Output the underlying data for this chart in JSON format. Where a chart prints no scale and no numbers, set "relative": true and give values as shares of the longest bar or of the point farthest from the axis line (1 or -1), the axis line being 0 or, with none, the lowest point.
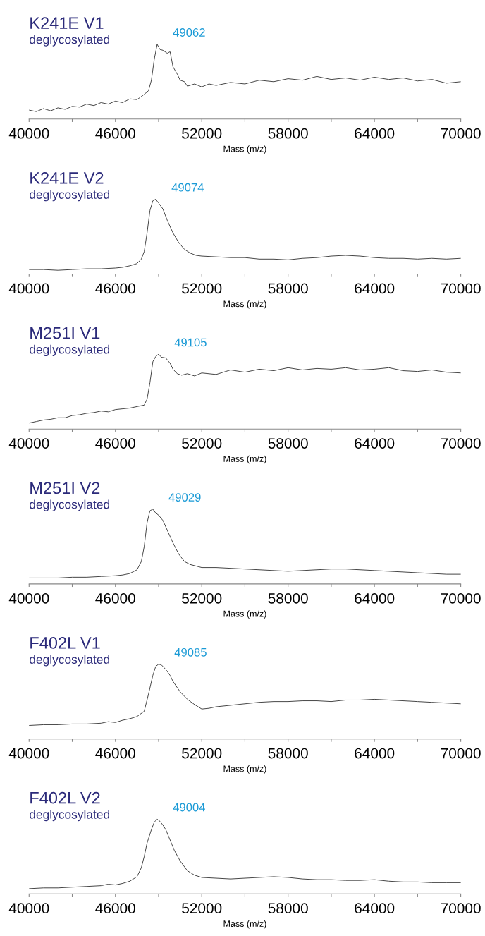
{
  "chart_data": [
    {
      "type": "line",
      "title": "K241E V1",
      "subtitle": "deglycosylated",
      "xlabel": "Mass (m/z)",
      "relative": true,
      "xlim": [
        40000,
        70000
      ],
      "xticks": [
        40000,
        {
          "value": 43000,
          "label": null
        },
        46000,
        {
          "value": 49000,
          "label": null
        },
        52000,
        {
          "value": 55000,
          "label": null
        },
        58000,
        {
          "value": 61000,
          "label": null
        },
        64000,
        {
          "value": 67000,
          "label": null
        },
        70000
      ],
      "tick_labels": "x",
      "grid": false,
      "annotations": [
        "49062"
      ],
      "series": [
        {
          "color": "#404040",
          "x": [
            40000,
            40500,
            41000,
            41500,
            42000,
            42500,
            43000,
            43500,
            44000,
            44500,
            45000,
            45500,
            46000,
            46500,
            47000,
            47500,
            48000,
            48300,
            48500,
            48700,
            48900,
            49100,
            49300,
            49600,
            49800,
            50000,
            50300,
            50500,
            50800,
            51000,
            51500,
            52000,
            52500,
            53000,
            54000,
            55000,
            56000,
            57000,
            58000,
            59000,
            60000,
            61000,
            62000,
            63000,
            64000,
            65000,
            66000,
            67000,
            68000,
            69000,
            70000
          ],
          "values": [
            0.12,
            0.1,
            0.14,
            0.11,
            0.15,
            0.13,
            0.17,
            0.16,
            0.2,
            0.18,
            0.22,
            0.2,
            0.24,
            0.22,
            0.27,
            0.26,
            0.33,
            0.38,
            0.52,
            0.8,
            1,
            0.93,
            0.92,
            0.88,
            0.9,
            0.7,
            0.6,
            0.52,
            0.5,
            0.44,
            0.47,
            0.43,
            0.47,
            0.45,
            0.49,
            0.47,
            0.52,
            0.5,
            0.54,
            0.52,
            0.57,
            0.53,
            0.55,
            0.52,
            0.56,
            0.53,
            0.55,
            0.51,
            0.53,
            0.48,
            0.5
          ]
        }
      ]
    },
    {
      "type": "line",
      "title": "K241E V2",
      "subtitle": "deglycosylated",
      "xlabel": "Mass (m/z)",
      "relative": true,
      "xlim": [
        40000,
        70000
      ],
      "xticks": [
        40000,
        {
          "value": 43000,
          "label": null
        },
        46000,
        {
          "value": 49000,
          "label": null
        },
        52000,
        {
          "value": 55000,
          "label": null
        },
        58000,
        {
          "value": 61000,
          "label": null
        },
        64000,
        {
          "value": 67000,
          "label": null
        },
        70000
      ],
      "tick_labels": "x",
      "grid": false,
      "annotations": [
        "49074"
      ],
      "series": [
        {
          "color": "#404040",
          "x": [
            40000,
            41000,
            42000,
            43000,
            44000,
            45000,
            46000,
            46500,
            47000,
            47500,
            47800,
            48000,
            48200,
            48400,
            48600,
            48800,
            49000,
            49300,
            49600,
            50000,
            50400,
            50800,
            51200,
            51600,
            52000,
            53000,
            54000,
            55000,
            56000,
            57000,
            58000,
            59000,
            60000,
            61000,
            62000,
            63000,
            64000,
            65000,
            66000,
            67000,
            68000,
            69000,
            70000
          ],
          "values": [
            0.06,
            0.06,
            0.05,
            0.06,
            0.07,
            0.07,
            0.08,
            0.09,
            0.11,
            0.14,
            0.2,
            0.3,
            0.55,
            0.85,
            0.98,
            1,
            0.95,
            0.87,
            0.72,
            0.55,
            0.42,
            0.33,
            0.28,
            0.25,
            0.24,
            0.23,
            0.22,
            0.22,
            0.2,
            0.2,
            0.19,
            0.21,
            0.22,
            0.24,
            0.25,
            0.24,
            0.22,
            0.21,
            0.21,
            0.2,
            0.21,
            0.2,
            0.21
          ]
        }
      ]
    },
    {
      "type": "line",
      "title": "M251I V1",
      "subtitle": "deglycosylated",
      "xlabel": "Mass (m/z)",
      "relative": true,
      "xlim": [
        40000,
        70000
      ],
      "xticks": [
        40000,
        {
          "value": 43000,
          "label": null
        },
        46000,
        {
          "value": 49000,
          "label": null
        },
        52000,
        {
          "value": 55000,
          "label": null
        },
        58000,
        {
          "value": 61000,
          "label": null
        },
        64000,
        {
          "value": 67000,
          "label": null
        },
        70000
      ],
      "tick_labels": "x",
      "grid": false,
      "annotations": [
        "49105"
      ],
      "series": [
        {
          "color": "#404040",
          "x": [
            40000,
            40500,
            41000,
            41500,
            42000,
            42500,
            43000,
            43500,
            44000,
            44500,
            45000,
            45500,
            46000,
            46500,
            47000,
            47500,
            48000,
            48200,
            48400,
            48600,
            48800,
            49000,
            49200,
            49500,
            49800,
            50000,
            50300,
            50600,
            51000,
            51500,
            52000,
            53000,
            54000,
            55000,
            56000,
            57000,
            58000,
            59000,
            60000,
            61000,
            62000,
            63000,
            64000,
            65000,
            66000,
            67000,
            68000,
            69000,
            70000
          ],
          "values": [
            0.08,
            0.1,
            0.12,
            0.13,
            0.15,
            0.15,
            0.18,
            0.19,
            0.21,
            0.22,
            0.24,
            0.23,
            0.26,
            0.27,
            0.28,
            0.3,
            0.32,
            0.4,
            0.62,
            0.9,
            0.97,
            1,
            0.96,
            0.95,
            0.88,
            0.8,
            0.74,
            0.72,
            0.74,
            0.71,
            0.75,
            0.73,
            0.79,
            0.76,
            0.8,
            0.78,
            0.82,
            0.79,
            0.81,
            0.8,
            0.82,
            0.79,
            0.8,
            0.82,
            0.78,
            0.77,
            0.79,
            0.76,
            0.75
          ]
        }
      ]
    },
    {
      "type": "line",
      "title": "M251I V2",
      "subtitle": "deglycosylated",
      "xlabel": "Mass (m/z)",
      "relative": true,
      "xlim": [
        40000,
        70000
      ],
      "xticks": [
        40000,
        {
          "value": 43000,
          "label": null
        },
        46000,
        {
          "value": 49000,
          "label": null
        },
        52000,
        {
          "value": 55000,
          "label": null
        },
        58000,
        {
          "value": 61000,
          "label": null
        },
        64000,
        {
          "value": 67000,
          "label": null
        },
        70000
      ],
      "tick_labels": "x",
      "grid": false,
      "annotations": [
        "49029"
      ],
      "series": [
        {
          "color": "#404040",
          "x": [
            40000,
            41000,
            42000,
            43000,
            44000,
            45000,
            46000,
            46500,
            47000,
            47500,
            47800,
            48000,
            48200,
            48400,
            48600,
            48800,
            49000,
            49300,
            49600,
            50000,
            50400,
            50800,
            51200,
            51600,
            52000,
            53000,
            54000,
            55000,
            56000,
            57000,
            58000,
            59000,
            60000,
            61000,
            62000,
            63000,
            64000,
            65000,
            66000,
            67000,
            68000,
            69000,
            70000
          ],
          "values": [
            0.08,
            0.08,
            0.08,
            0.09,
            0.09,
            0.1,
            0.11,
            0.12,
            0.14,
            0.19,
            0.3,
            0.5,
            0.82,
            0.98,
            1,
            0.95,
            0.92,
            0.85,
            0.72,
            0.55,
            0.4,
            0.3,
            0.26,
            0.24,
            0.22,
            0.22,
            0.21,
            0.2,
            0.19,
            0.18,
            0.17,
            0.18,
            0.19,
            0.2,
            0.2,
            0.19,
            0.18,
            0.17,
            0.16,
            0.15,
            0.14,
            0.13,
            0.13
          ]
        }
      ]
    },
    {
      "type": "line",
      "title": "F402L V1",
      "subtitle": "deglycosylated",
      "xlabel": "Mass (m/z)",
      "relative": true,
      "xlim": [
        40000,
        70000
      ],
      "xticks": [
        40000,
        {
          "value": 43000,
          "label": null
        },
        46000,
        {
          "value": 49000,
          "label": null
        },
        52000,
        {
          "value": 55000,
          "label": null
        },
        58000,
        {
          "value": 61000,
          "label": null
        },
        64000,
        {
          "value": 67000,
          "label": null
        },
        70000
      ],
      "tick_labels": "x",
      "grid": false,
      "annotations": [
        "49085"
      ],
      "series": [
        {
          "color": "#404040",
          "x": [
            40000,
            41000,
            42000,
            43000,
            44000,
            45000,
            45500,
            46000,
            46500,
            47000,
            47500,
            48000,
            48300,
            48600,
            48800,
            49000,
            49200,
            49500,
            49800,
            50000,
            50500,
            51000,
            51500,
            52000,
            52500,
            53000,
            54000,
            55000,
            56000,
            57000,
            58000,
            59000,
            60000,
            61000,
            62000,
            63000,
            64000,
            65000,
            66000,
            67000,
            68000,
            69000,
            70000
          ],
          "values": [
            0.18,
            0.19,
            0.19,
            0.2,
            0.2,
            0.21,
            0.23,
            0.22,
            0.25,
            0.27,
            0.3,
            0.37,
            0.6,
            0.85,
            0.97,
            1,
            0.99,
            0.93,
            0.85,
            0.77,
            0.63,
            0.53,
            0.46,
            0.4,
            0.41,
            0.43,
            0.45,
            0.47,
            0.49,
            0.5,
            0.5,
            0.51,
            0.51,
            0.5,
            0.52,
            0.52,
            0.53,
            0.52,
            0.51,
            0.5,
            0.49,
            0.48,
            0.47
          ]
        }
      ]
    },
    {
      "type": "line",
      "title": "F402L V2",
      "subtitle": "deglycosylated",
      "xlabel": "Mass (m/z)",
      "relative": true,
      "xlim": [
        40000,
        70000
      ],
      "xticks": [
        40000,
        {
          "value": 43000,
          "label": null
        },
        46000,
        {
          "value": 49000,
          "label": null
        },
        52000,
        {
          "value": 55000,
          "label": null
        },
        58000,
        {
          "value": 61000,
          "label": null
        },
        64000,
        {
          "value": 67000,
          "label": null
        },
        70000
      ],
      "tick_labels": "x",
      "grid": false,
      "annotations": [
        "49004"
      ],
      "series": [
        {
          "color": "#404040",
          "x": [
            40000,
            41000,
            42000,
            43000,
            44000,
            45000,
            45500,
            46000,
            46500,
            47000,
            47500,
            47800,
            48000,
            48200,
            48500,
            48700,
            48900,
            49100,
            49300,
            49500,
            49800,
            50100,
            50500,
            51000,
            51500,
            52000,
            53000,
            54000,
            55000,
            56000,
            57000,
            58000,
            59000,
            60000,
            61000,
            62000,
            63000,
            64000,
            65000,
            66000,
            67000,
            68000,
            69000,
            70000
          ],
          "values": [
            0.07,
            0.08,
            0.08,
            0.09,
            0.1,
            0.11,
            0.13,
            0.12,
            0.14,
            0.17,
            0.23,
            0.35,
            0.5,
            0.68,
            0.86,
            0.96,
            1,
            0.97,
            0.92,
            0.86,
            0.72,
            0.58,
            0.44,
            0.31,
            0.25,
            0.22,
            0.21,
            0.2,
            0.21,
            0.22,
            0.23,
            0.22,
            0.2,
            0.19,
            0.19,
            0.18,
            0.18,
            0.19,
            0.17,
            0.16,
            0.16,
            0.15,
            0.15,
            0.15
          ]
        }
      ]
    }
  ]
}
